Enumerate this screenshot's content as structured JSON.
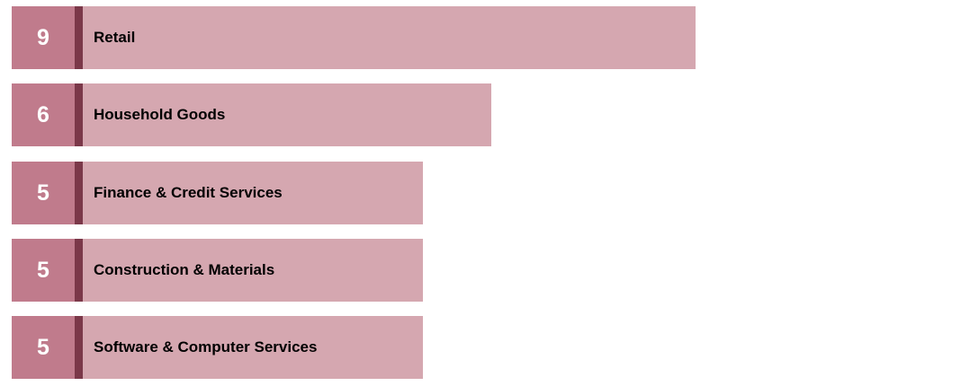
{
  "chart_data": {
    "type": "bar",
    "orientation": "horizontal",
    "categories": [
      "Retail",
      "Household Goods",
      "Finance & Credit Services",
      "Construction & Materials",
      "Software & Computer Services"
    ],
    "values": [
      9,
      6,
      5,
      5,
      5
    ],
    "title": "",
    "xlabel": "",
    "ylabel": "",
    "xlim": [
      0,
      9
    ],
    "grid": false,
    "legend": "none"
  },
  "colors": {
    "rank_box": "#c07b8c",
    "divider": "#7b3849",
    "bar": "#d5a7b0",
    "rank_text": "#ffffff",
    "label_text": "#000000"
  }
}
